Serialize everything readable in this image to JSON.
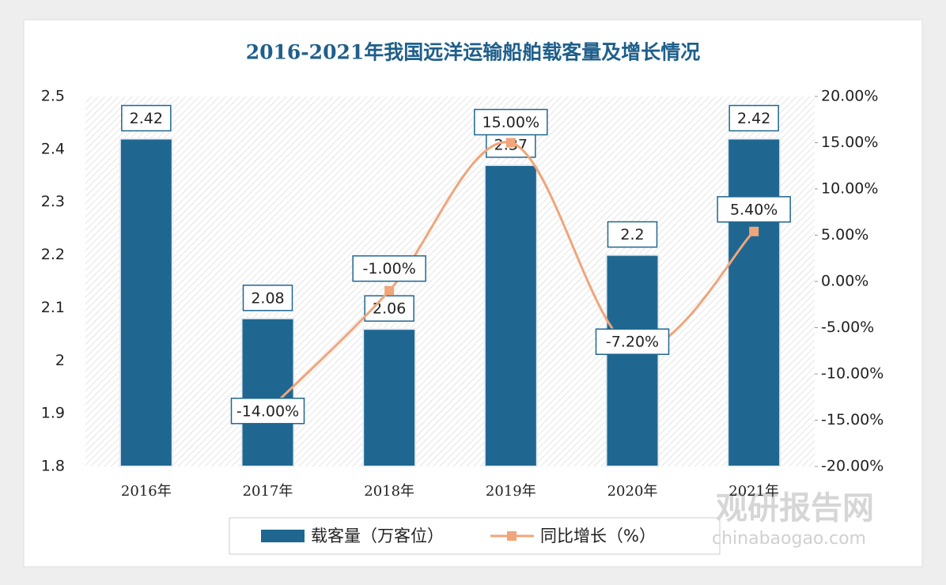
{
  "chart_data": {
    "type": "bar",
    "title": "2016-2021年我国远洋运输船舶载客量及增长情况",
    "categories": [
      "2016年",
      "2017年",
      "2018年",
      "2019年",
      "2020年",
      "2021年"
    ],
    "series": [
      {
        "name": "载客量（万客位）",
        "type": "bar",
        "color": "#1f6791",
        "values": [
          2.42,
          2.08,
          2.06,
          2.37,
          2.2,
          2.42
        ]
      },
      {
        "name": "同比增长（%）",
        "type": "line",
        "axis": "y2",
        "color": "#f0a57a",
        "values": [
          null,
          -14,
          -1,
          15,
          -7.2,
          5.4
        ],
        "value_labels": [
          null,
          "-14.00%",
          "-1.00%",
          "15.00%",
          "-7.20%",
          "5.40%"
        ]
      }
    ],
    "ylim": [
      1.8,
      2.5
    ],
    "yticks": [
      2.5,
      2.4,
      2.3,
      2.2,
      2.1,
      2,
      1.9,
      1.8
    ],
    "y2lim": [
      -20,
      20
    ],
    "y2ticks": [
      {
        "value": 20,
        "label": "20.00%"
      },
      {
        "value": 15,
        "label": "15.00%"
      },
      {
        "value": 10,
        "label": "10.00%"
      },
      {
        "value": 5,
        "label": "5.00%"
      },
      {
        "value": 0,
        "label": "0.00%"
      },
      {
        "value": -5,
        "label": "-5.00%"
      },
      {
        "value": -10,
        "label": "-10.00%"
      },
      {
        "value": -15,
        "label": "-15.00%"
      },
      {
        "value": -20,
        "label": "-20.00%"
      }
    ],
    "grid": false,
    "legend": "bottom",
    "watermark": {
      "name": "观研报告网",
      "url": "chinabaogao.com"
    }
  }
}
